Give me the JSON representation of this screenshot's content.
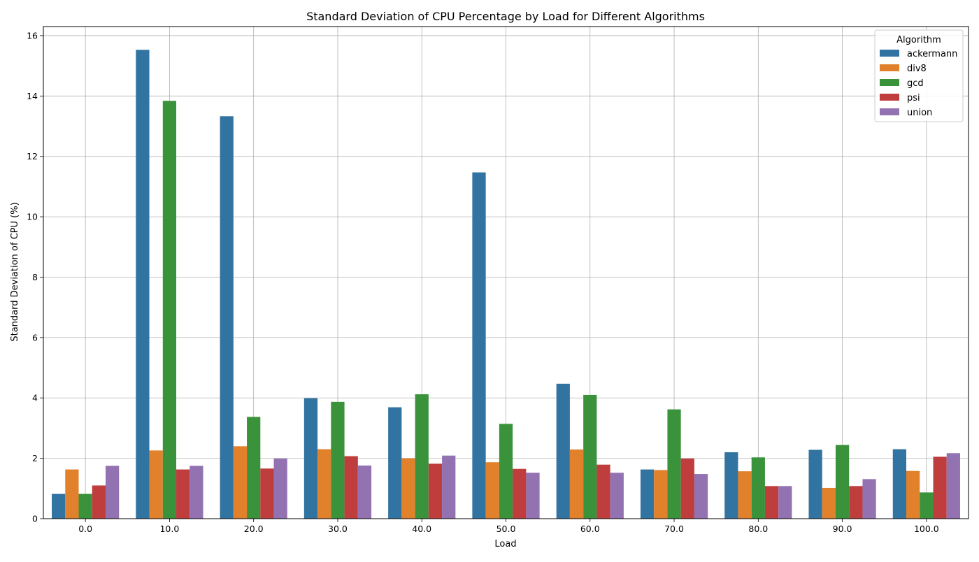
{
  "chart_data": {
    "type": "bar",
    "title": "Standard Deviation of CPU Percentage by Load for Different Algorithms",
    "xlabel": "Load",
    "ylabel": "Standard Deviation of CPU (%)",
    "categories": [
      "0.0",
      "10.0",
      "20.0",
      "30.0",
      "40.0",
      "50.0",
      "60.0",
      "70.0",
      "80.0",
      "90.0",
      "100.0"
    ],
    "ylim": [
      0,
      16.3
    ],
    "yticks": [
      0,
      2,
      4,
      6,
      8,
      10,
      12,
      14,
      16
    ],
    "grid": true,
    "legend": {
      "title": "Algorithm",
      "placement": "top-right"
    },
    "series": [
      {
        "name": "ackermann",
        "color": "#3274a1",
        "values": [
          0.82,
          15.53,
          13.33,
          3.99,
          3.69,
          11.47,
          4.47,
          1.63,
          2.2,
          2.28,
          2.3
        ]
      },
      {
        "name": "div8",
        "color": "#e1812c",
        "values": [
          1.63,
          2.26,
          2.4,
          2.3,
          2.0,
          1.87,
          2.29,
          1.61,
          1.57,
          1.02,
          1.58
        ]
      },
      {
        "name": "gcd",
        "color": "#3a923a",
        "values": [
          0.82,
          13.84,
          3.37,
          3.87,
          4.12,
          3.14,
          4.1,
          3.62,
          2.03,
          2.44,
          0.87
        ]
      },
      {
        "name": "psi",
        "color": "#c03d3e",
        "values": [
          1.1,
          1.63,
          1.66,
          2.07,
          1.82,
          1.65,
          1.79,
          1.99,
          1.08,
          1.08,
          2.05
        ]
      },
      {
        "name": "union",
        "color": "#9372b2",
        "values": [
          1.75,
          1.75,
          1.99,
          1.76,
          2.09,
          1.52,
          1.52,
          1.48,
          1.08,
          1.31,
          2.17
        ]
      }
    ]
  }
}
